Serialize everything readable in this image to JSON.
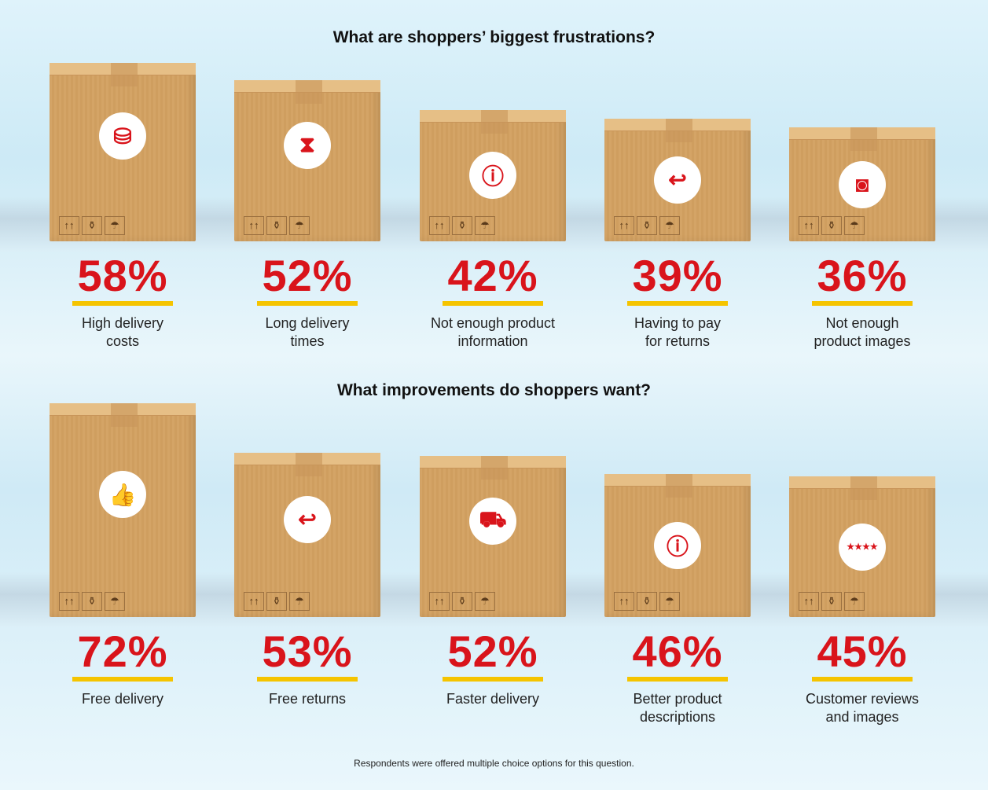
{
  "chart_data": [
    {
      "type": "bar",
      "title": "What are shoppers’ biggest frustrations?",
      "categories": [
        "High delivery costs",
        "Long delivery times",
        "Not enough product information",
        "Having to pay for returns",
        "Not enough product images"
      ],
      "labels": [
        [
          "High delivery",
          "costs"
        ],
        [
          "Long delivery",
          "times"
        ],
        [
          "Not enough product",
          "information"
        ],
        [
          "Having to pay",
          "for returns"
        ],
        [
          "Not enough",
          "product images"
        ]
      ],
      "values": [
        58,
        52,
        42,
        39,
        36
      ],
      "display": [
        "58%",
        "52%",
        "42%",
        "39%",
        "36%"
      ],
      "icons": [
        "coins-icon",
        "hourglass-icon",
        "info-icon",
        "return-arrow-icon",
        "camera-icon"
      ]
    },
    {
      "type": "bar",
      "title": "What improvements do shoppers want?",
      "categories": [
        "Free delivery",
        "Free returns",
        "Faster delivery",
        "Better product descriptions",
        "Customer reviews and images"
      ],
      "labels": [
        [
          "Free delivery"
        ],
        [
          "Free returns"
        ],
        [
          "Faster delivery"
        ],
        [
          "Better product",
          "descriptions"
        ],
        [
          "Customer reviews",
          "and images"
        ]
      ],
      "values": [
        72,
        53,
        52,
        46,
        45
      ],
      "display": [
        "72%",
        "53%",
        "52%",
        "46%",
        "45%"
      ],
      "icons": [
        "thumbs-up-icon",
        "return-arrow-icon",
        "delivery-van-icon",
        "info-icon",
        "star-rating-camera-icon"
      ]
    }
  ],
  "footnote": "Respondents were offered multiple choice options for this question.",
  "colors": {
    "accent": "#d9141b",
    "underline": "#f5c400",
    "box": "#d4a466"
  }
}
